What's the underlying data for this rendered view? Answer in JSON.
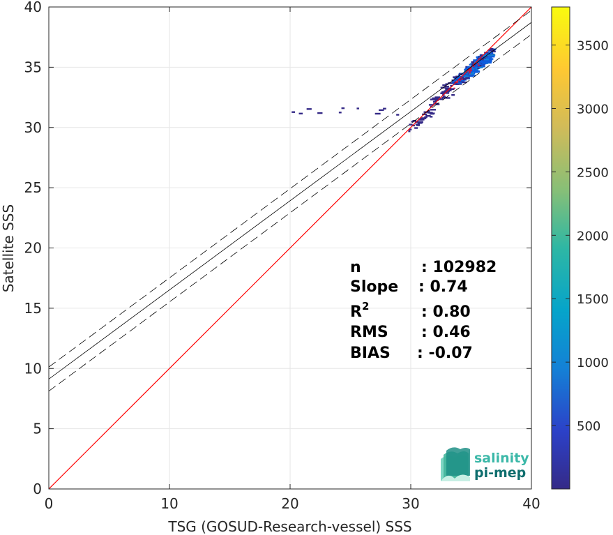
{
  "chart_data": {
    "type": "heatmap",
    "xlabel": "TSG (GOSUD-Research-vessel) SSS",
    "ylabel": "Satellite SSS",
    "xlim": [
      0,
      40
    ],
    "ylim": [
      0,
      40
    ],
    "xticks": [
      0,
      10,
      20,
      30,
      40
    ],
    "yticks": [
      0,
      5,
      10,
      15,
      20,
      25,
      30,
      35,
      40
    ],
    "grid": true,
    "colorbar": {
      "colormap": "parula",
      "range": [
        0,
        3800
      ],
      "ticks": [
        500,
        1000,
        1500,
        2000,
        2500,
        3000,
        3500
      ],
      "colors": [
        "#352a87",
        "#0f5cdd",
        "#1481d6",
        "#06a4ca",
        "#2eb7a4",
        "#87bf77",
        "#d1bb59",
        "#fec832",
        "#f9fb0e"
      ]
    },
    "identity_line": {
      "slope": 1,
      "intercept": 0,
      "color": "#ff0000"
    },
    "regression_line": {
      "slope": 0.74,
      "intercept": 9.12,
      "color": "#000000"
    },
    "confidence_lines": {
      "offset": 1.0,
      "style": "dashed"
    },
    "density_clusters": [
      {
        "x_range": [
          18.8,
          31.5
        ],
        "y": 31.3,
        "count": 30
      },
      {
        "x_range": [
          29.5,
          31.0
        ],
        "y": 30.2,
        "count": 60
      },
      {
        "x_range": [
          30.5,
          32.2
        ],
        "y": 31.0,
        "count": 120
      },
      {
        "x_range": [
          31.5,
          33.5
        ],
        "y": 32.5,
        "count": 180
      },
      {
        "x_range": [
          32.5,
          34.5
        ],
        "y": 33.6,
        "count": 300
      },
      {
        "x_range": [
          33.5,
          35.5
        ],
        "y": 34.4,
        "count": 700
      },
      {
        "x_range": [
          34.5,
          36.5
        ],
        "y": 35.2,
        "count": 1200
      },
      {
        "x_range": [
          35.0,
          36.8
        ],
        "y": 35.7,
        "count": 900
      }
    ],
    "stats": [
      {
        "label": "n",
        "value": ": 102982"
      },
      {
        "label": "Slope",
        "value": ": 0.74"
      },
      {
        "label": "R",
        "sup": "2",
        "value": ": 0.80"
      },
      {
        "label": "RMS",
        "value": ": 0.46"
      },
      {
        "label": "BIAS",
        "value": ": -0.07"
      }
    ]
  },
  "logo": {
    "line1": "salinity",
    "line2": "pi-mep",
    "color1": "#3bb8a8",
    "color2": "#0e6e6e"
  }
}
